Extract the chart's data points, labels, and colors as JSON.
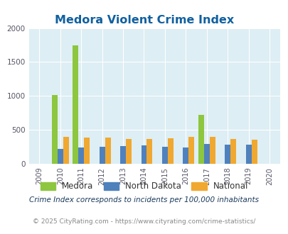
{
  "title": "Medora Violent Crime Index",
  "title_color": "#1060a0",
  "years": [
    2009,
    2010,
    2011,
    2012,
    2013,
    2014,
    2015,
    2016,
    2017,
    2018,
    2019,
    2020
  ],
  "medora": [
    0,
    1010,
    1750,
    0,
    0,
    0,
    0,
    0,
    720,
    0,
    0,
    0
  ],
  "north_dakota": [
    0,
    215,
    245,
    250,
    265,
    275,
    250,
    245,
    290,
    285,
    285,
    0
  ],
  "national": [
    0,
    400,
    385,
    385,
    368,
    365,
    375,
    395,
    400,
    370,
    358,
    0
  ],
  "medora_color": "#8dc63f",
  "nd_color": "#4f81bd",
  "nat_color": "#f0a830",
  "bg_color": "#ddeef4",
  "ylim": [
    0,
    2000
  ],
  "yticks": [
    0,
    500,
    1000,
    1500,
    2000
  ],
  "legend_labels": [
    "Medora",
    "North Dakota",
    "National"
  ],
  "footnote1": "Crime Index corresponds to incidents per 100,000 inhabitants",
  "footnote2": "© 2025 CityRating.com - https://www.cityrating.com/crime-statistics/",
  "bar_width": 0.27
}
